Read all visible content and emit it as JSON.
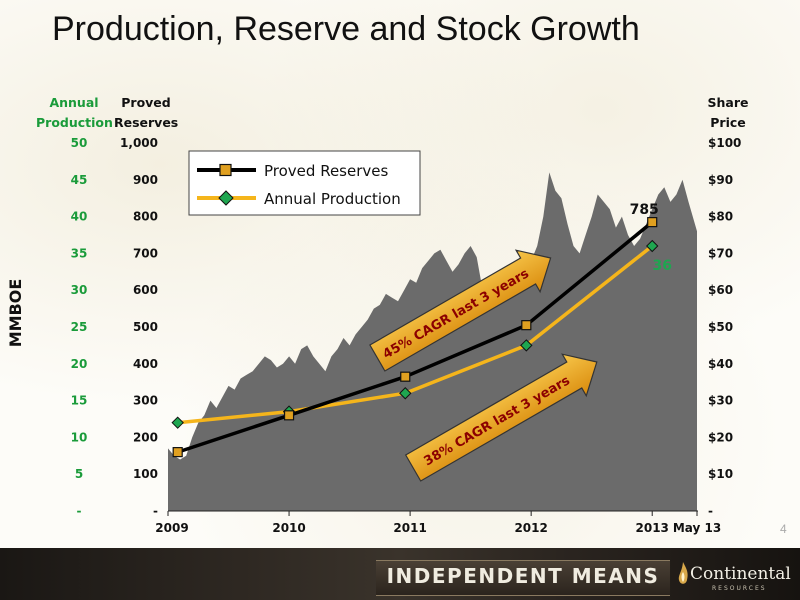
{
  "slide": {
    "title": "Production, Reserve and Stock Growth",
    "page_number": "4"
  },
  "axis_headers": {
    "production_line1": "Annual",
    "production_line2": "Production",
    "reserves_line1": "Proved",
    "reserves_line2": "Reserves",
    "price_line1": "Share",
    "price_line2": "Price",
    "mmboe": "MMBOE"
  },
  "colors": {
    "reserves_line": "#000000",
    "production_line": "#f5b51b",
    "reserves_marker": "#e0a020",
    "production_marker": "#1ea650",
    "stock_area": "#6b6b6b",
    "production_axis_text": "#1a9b3a",
    "arrow_fill": "#e8a317"
  },
  "footer": {
    "tagline": "INDEPENDENT MEANS",
    "company": "Continental",
    "company_sub": "RESOURCES"
  },
  "chart_data": {
    "type": "line",
    "x_ticks": [
      "2009",
      "2010",
      "2011",
      "2012",
      "2013",
      "May 13"
    ],
    "x_range": [
      2009.0,
      2013.37
    ],
    "left_axis_reserves": {
      "ticks": [
        "-",
        "100",
        "200",
        "300",
        "400",
        "500",
        "600",
        "700",
        "800",
        "900",
        "1,000"
      ],
      "ylim": [
        0,
        1000
      ]
    },
    "left_axis_production": {
      "ticks": [
        "-",
        "5",
        "10",
        "15",
        "20",
        "25",
        "30",
        "35",
        "40",
        "45",
        "50"
      ],
      "ylim": [
        0,
        50
      ]
    },
    "right_axis_price": {
      "ticks": [
        "-",
        "$10",
        "$20",
        "$30",
        "$40",
        "$50",
        "$60",
        "$70",
        "$80",
        "$90",
        "$100"
      ],
      "ylim": [
        0,
        100
      ]
    },
    "legend": {
      "position": "top-left",
      "entries": [
        "Proved Reserves",
        "Annual Production"
      ]
    },
    "series": [
      {
        "name": "Proved Reserves",
        "axis": "reserves",
        "x": [
          2009.08,
          2010.0,
          2010.96,
          2011.96,
          2013.0
        ],
        "values": [
          160,
          260,
          365,
          505,
          785
        ]
      },
      {
        "name": "Annual Production",
        "axis": "production",
        "x": [
          2009.08,
          2010.0,
          2010.96,
          2011.96,
          2013.0
        ],
        "values": [
          12,
          13.5,
          16,
          22.5,
          36
        ]
      }
    ],
    "stock_price": {
      "axis": "price",
      "x": [
        2009.0,
        2009.05,
        2009.1,
        2009.15,
        2009.2,
        2009.25,
        2009.3,
        2009.35,
        2009.4,
        2009.45,
        2009.5,
        2009.55,
        2009.6,
        2009.65,
        2009.7,
        2009.75,
        2009.8,
        2009.85,
        2009.9,
        2009.95,
        2010.0,
        2010.05,
        2010.1,
        2010.15,
        2010.2,
        2010.25,
        2010.3,
        2010.35,
        2010.4,
        2010.45,
        2010.5,
        2010.55,
        2010.6,
        2010.65,
        2010.7,
        2010.75,
        2010.8,
        2010.85,
        2010.9,
        2010.95,
        2011.0,
        2011.05,
        2011.1,
        2011.15,
        2011.2,
        2011.25,
        2011.3,
        2011.35,
        2011.4,
        2011.45,
        2011.5,
        2011.55,
        2011.6,
        2011.65,
        2011.7,
        2011.75,
        2011.8,
        2011.85,
        2011.9,
        2011.95,
        2012.0,
        2012.05,
        2012.1,
        2012.15,
        2012.2,
        2012.25,
        2012.3,
        2012.35,
        2012.4,
        2012.45,
        2012.5,
        2012.55,
        2012.6,
        2012.65,
        2012.7,
        2012.75,
        2012.8,
        2012.85,
        2012.9,
        2012.95,
        2013.0,
        2013.05,
        2013.1,
        2013.15,
        2013.2,
        2013.25,
        2013.3,
        2013.37
      ],
      "values": [
        17,
        15,
        14,
        15,
        20,
        24,
        26,
        30,
        28,
        31,
        34,
        33,
        36,
        37,
        38,
        40,
        42,
        41,
        39,
        40,
        42,
        40,
        44,
        45,
        42,
        40,
        38,
        42,
        44,
        47,
        45,
        48,
        50,
        52,
        55,
        56,
        59,
        58,
        57,
        60,
        63,
        62,
        66,
        68,
        70,
        71,
        68,
        65,
        67,
        70,
        72,
        69,
        60,
        55,
        58,
        64,
        66,
        63,
        67,
        66,
        68,
        72,
        80,
        92,
        87,
        85,
        78,
        72,
        70,
        75,
        80,
        86,
        84,
        82,
        77,
        80,
        75,
        72,
        74,
        78,
        82,
        86,
        88,
        84,
        86,
        90,
        84,
        76
      ]
    },
    "data_labels": [
      {
        "series": "Proved Reserves",
        "text": "785"
      },
      {
        "series": "Annual Production",
        "text": "36"
      }
    ],
    "annotations": [
      {
        "text": "45% CAGR last 3 years"
      },
      {
        "text": "38% CAGR last 3 years"
      }
    ]
  }
}
